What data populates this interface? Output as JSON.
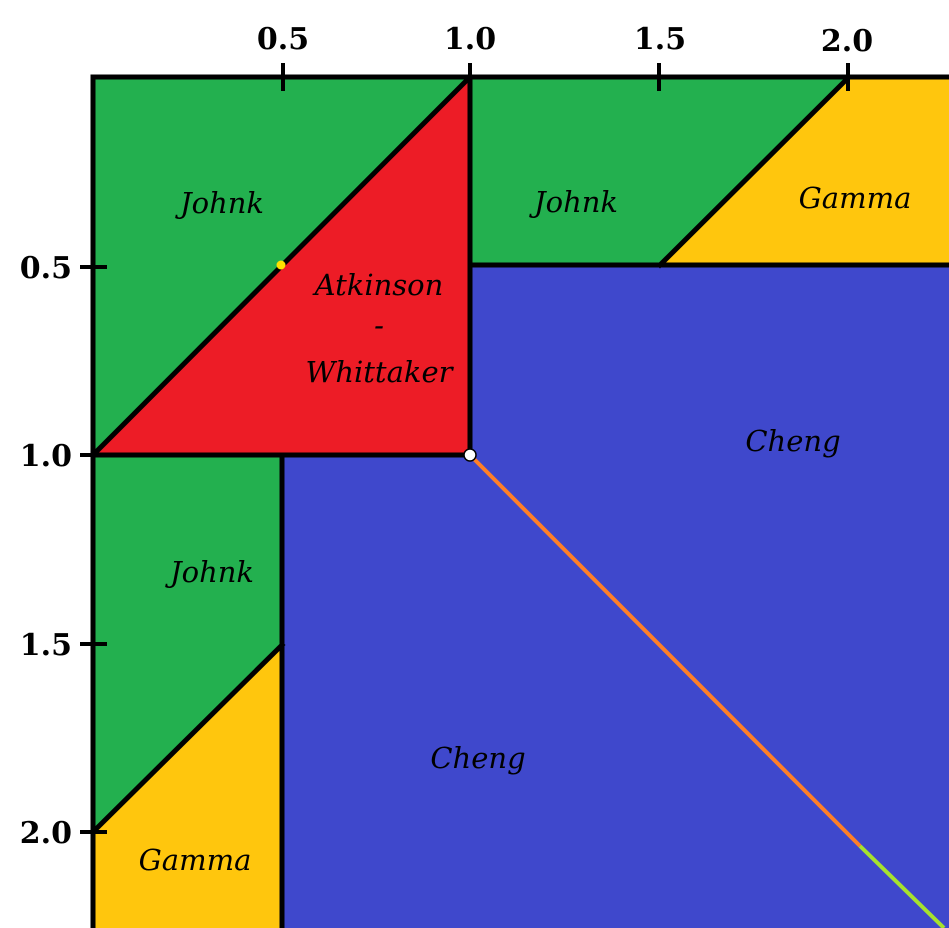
{
  "axes": {
    "top_ticks": [
      "0.5",
      "1.0",
      "1.5",
      "2.0"
    ],
    "left_ticks": [
      "0.5",
      "1.0",
      "1.5",
      "2.0"
    ]
  },
  "regions": {
    "johnk_upper_left": "Johnk",
    "johnk_top": "Johnk",
    "gamma_top_right": "Gamma",
    "atkinson_line1": "Atkinson",
    "atkinson_line2": "-",
    "atkinson_line3": "Whittaker",
    "cheng_right": "Cheng",
    "johnk_lower_left": "Johnk",
    "cheng_bottom": "Cheng",
    "gamma_bottom_left": "Gamma"
  },
  "colors": {
    "johnk": "#23b04f",
    "gamma": "#ffc60d",
    "atkinson_whittaker": "#ed1c26",
    "cheng": "#3f48cc",
    "diagonal_line": "#ff7f27",
    "diagonal_tail": "#a6e22e",
    "point_marker": "#ffe000",
    "border": "#000000"
  }
}
